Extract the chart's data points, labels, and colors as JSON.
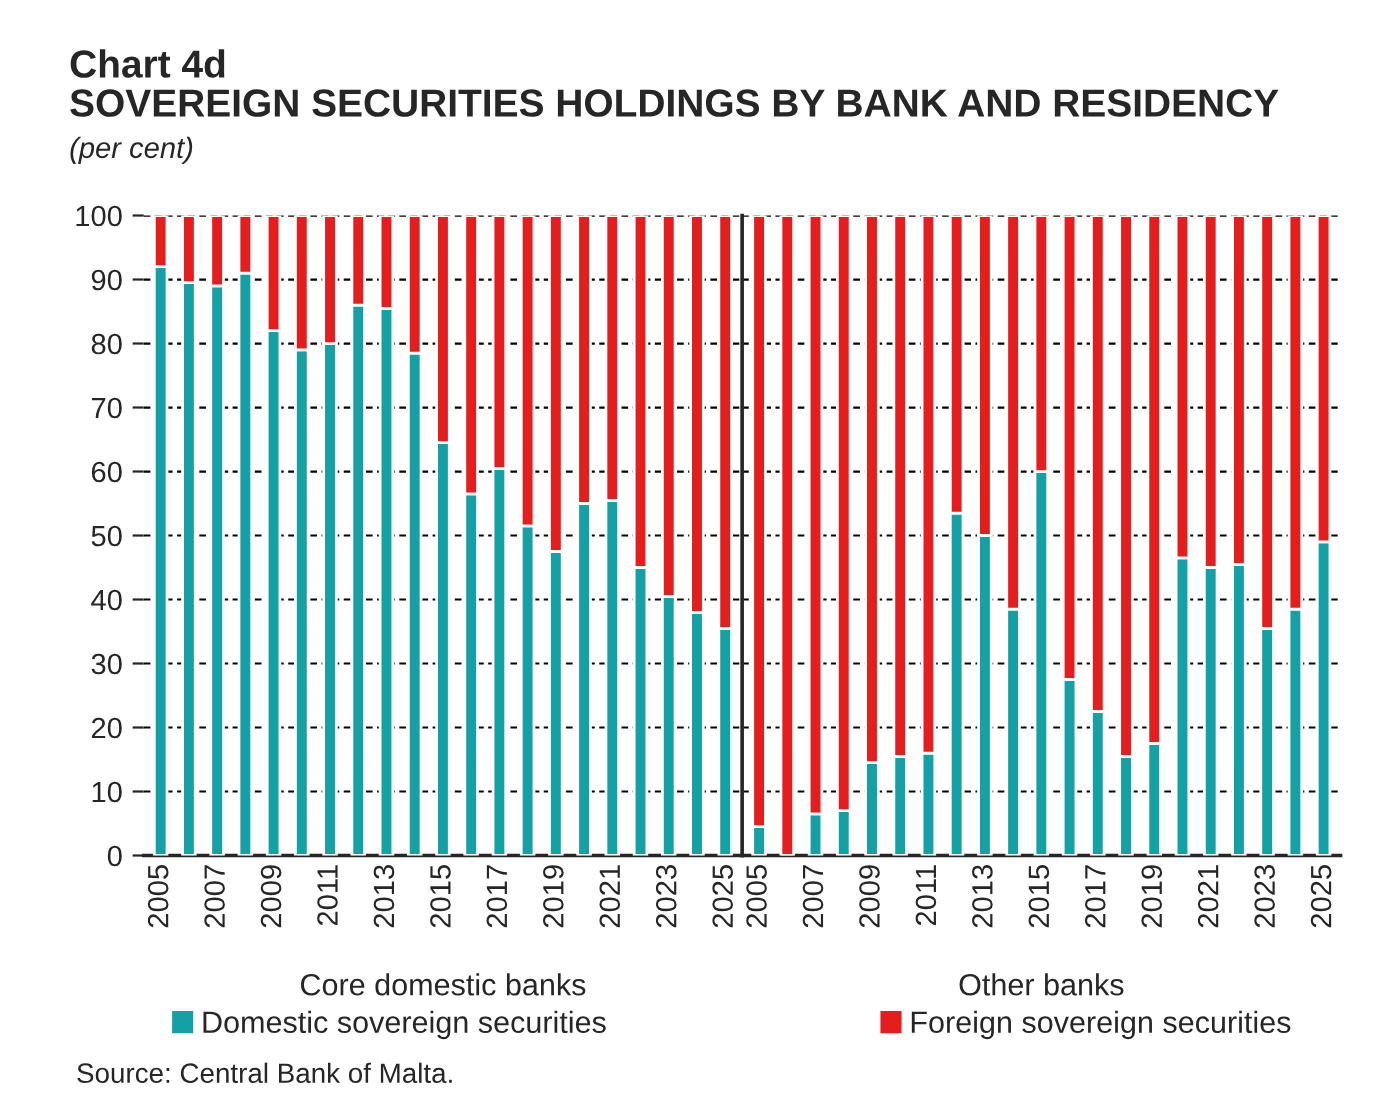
{
  "chart_data": [
    {
      "type": "bar",
      "stacked": true,
      "title": "Chart 4d\nSOVEREIGN SECURITIES HOLDINGS BY BANK AND RESIDENCY",
      "subtitle": "(per cent)",
      "xlabel": "Core domestic banks",
      "categories": [
        "2005",
        null,
        "2007",
        null,
        "2009",
        null,
        "2011",
        null,
        "2013",
        null,
        "2015",
        null,
        "2017",
        null,
        "2019",
        null,
        "2021",
        null,
        "2023",
        null,
        "2025"
      ],
      "series": [
        {
          "name": "Domestic sovereign securities",
          "color": "#14a0a4",
          "values": [
            92,
            89.5,
            89,
            91,
            82,
            79,
            80,
            86,
            85.5,
            78.5,
            64.5,
            56.5,
            60.5,
            51.5,
            47.5,
            55,
            55.5,
            45,
            40.5,
            38,
            35.5
          ]
        },
        {
          "name": "Foreign sovereign securities",
          "color": "#e41e1e",
          "values": [
            8,
            10.5,
            11,
            9,
            18,
            21,
            20,
            14,
            14.5,
            21.5,
            35.5,
            43.5,
            39.5,
            48.5,
            52.5,
            45,
            44.5,
            55,
            59.5,
            62,
            64.5
          ]
        }
      ],
      "ylim": [
        0,
        100
      ],
      "yticks": [
        0,
        10,
        20,
        30,
        40,
        50,
        60,
        70,
        80,
        90,
        100
      ],
      "grid": "y",
      "legend": "bottom",
      "annotations": [
        "Source: Central Bank of Malta."
      ]
    },
    {
      "type": "bar",
      "stacked": true,
      "xlabel": "Other banks",
      "tick_labels": "x",
      "categories": [
        "2005",
        null,
        "2007",
        null,
        "2009",
        null,
        "2011",
        null,
        "2013",
        null,
        "2015",
        null,
        "2017",
        null,
        "2019",
        null,
        "2021",
        null,
        "2023",
        null,
        "2025"
      ],
      "series": [
        {
          "color": "#14a0a4",
          "values": [
            4.5,
            0,
            6.5,
            7,
            14.5,
            15.5,
            16,
            53.5,
            50,
            38.5,
            60,
            27.5,
            22.5,
            15.5,
            17.5,
            46.5,
            45,
            45.5,
            35.5,
            38.5,
            49
          ]
        },
        {
          "color": "#e41e1e",
          "values": [
            95.5,
            100,
            93.5,
            93,
            85.5,
            84.5,
            84,
            46.5,
            50,
            61.5,
            40,
            72.5,
            77.5,
            84.5,
            82.5,
            53.5,
            55,
            54.5,
            64.5,
            61.5,
            51
          ]
        }
      ],
      "ylim": [
        0,
        100
      ],
      "yticks": [
        0,
        10,
        20,
        30,
        40,
        50,
        60,
        70,
        80,
        90,
        100
      ],
      "grid": "y"
    }
  ]
}
